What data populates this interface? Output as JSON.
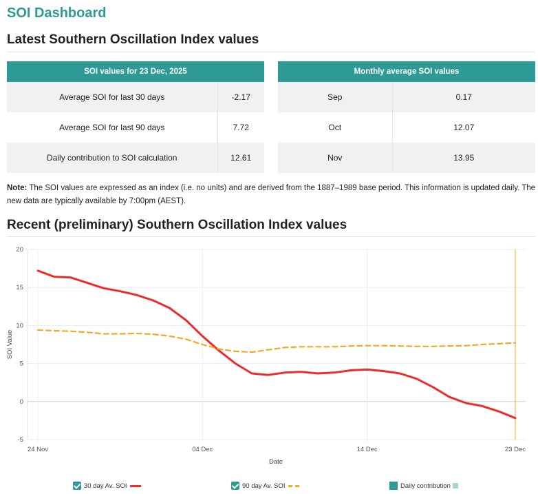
{
  "app": {
    "title": "SOI Dashboard"
  },
  "latest": {
    "heading": "Latest Southern Oscillation Index values",
    "current_table": {
      "header": "SOI values for 23 Dec, 2025",
      "rows": [
        {
          "label": "Average SOI for last 30 days",
          "value": "-2.17"
        },
        {
          "label": "Average SOI for last 90 days",
          "value": "7.72"
        },
        {
          "label": "Daily contribution to SOI calculation",
          "value": "12.61"
        }
      ]
    },
    "monthly_table": {
      "header": "Monthly average SOI values",
      "rows": [
        {
          "label": "Sep",
          "value": "0.17"
        },
        {
          "label": "Oct",
          "value": "12.07"
        },
        {
          "label": "Nov",
          "value": "13.95"
        }
      ]
    }
  },
  "note": {
    "label": "Note:",
    "text": " The SOI values are expressed as an index (i.e. no units) and are derived from the 1887–1989 base period. This information is updated daily. The new data are typically available by 7:00pm (AEST)."
  },
  "recent": {
    "heading": "Recent (preliminary) Southern Oscillation Index values"
  },
  "colors": {
    "accent": "#2e9a96",
    "soi30": "#ee2a2a",
    "soi90": "#f5a623",
    "daily": "#a9d6d4"
  },
  "legend": {
    "soi30": "30 day Av. SOI",
    "soi90": "90 day Av. SOI",
    "daily": "Daily contribution"
  },
  "chart_data": {
    "type": "line",
    "xlabel": "Date",
    "ylabel": "SOI Value",
    "ylim": [
      -5,
      20
    ],
    "y_ticks": [
      -5,
      0,
      5,
      10,
      15,
      20
    ],
    "x_ticks": [
      {
        "label": "24 Nov",
        "day": 0
      },
      {
        "label": "04 Dec",
        "day": 10
      },
      {
        "label": "14 Dec",
        "day": 20
      },
      {
        "label": "23 Dec",
        "day": 29
      }
    ],
    "x_dates": [
      "24 Nov",
      "25 Nov",
      "26 Nov",
      "27 Nov",
      "28 Nov",
      "29 Nov",
      "30 Nov",
      "01 Dec",
      "02 Dec",
      "03 Dec",
      "04 Dec",
      "05 Dec",
      "06 Dec",
      "07 Dec",
      "08 Dec",
      "09 Dec",
      "10 Dec",
      "11 Dec",
      "12 Dec",
      "13 Dec",
      "14 Dec",
      "15 Dec",
      "16 Dec",
      "17 Dec",
      "18 Dec",
      "19 Dec",
      "20 Dec",
      "21 Dec",
      "22 Dec",
      "23 Dec"
    ],
    "series": [
      {
        "name": "30 day Av. SOI",
        "style": "solid",
        "values": [
          17.2,
          16.4,
          16.3,
          15.6,
          14.9,
          14.5,
          14.0,
          13.3,
          12.3,
          10.7,
          8.6,
          6.7,
          5.0,
          3.7,
          3.5,
          3.8,
          3.9,
          3.7,
          3.8,
          4.1,
          4.2,
          4.0,
          3.7,
          3.0,
          1.9,
          0.6,
          -0.2,
          -0.6,
          -1.3,
          -2.17
        ]
      },
      {
        "name": "90 day Av. SOI",
        "style": "dashed",
        "values": [
          9.4,
          9.3,
          9.25,
          9.1,
          8.9,
          8.9,
          8.95,
          8.85,
          8.6,
          8.2,
          7.5,
          6.9,
          6.6,
          6.5,
          6.8,
          7.1,
          7.2,
          7.2,
          7.2,
          7.3,
          7.35,
          7.35,
          7.3,
          7.25,
          7.25,
          7.3,
          7.35,
          7.5,
          7.6,
          7.72
        ]
      }
    ],
    "marker_day": 29,
    "grid": true
  }
}
